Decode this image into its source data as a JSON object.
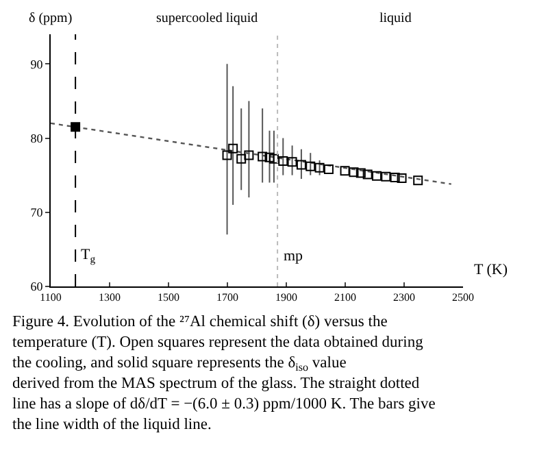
{
  "chart_data": {
    "type": "scatter",
    "xlabel": "T (K)",
    "ylabel": "δ (ppm)",
    "xlim": [
      1100,
      2500
    ],
    "xticks": [
      1100,
      1300,
      1500,
      1700,
      1900,
      2100,
      2300,
      2500
    ],
    "ylim": [
      60,
      94
    ],
    "yticks": [
      60,
      70,
      80,
      90
    ],
    "series": [
      {
        "type": "line",
        "color": "#555555",
        "line_style": "dotted",
        "marker": "none",
        "x": [
          1100,
          2460
        ],
        "values": [
          82.0,
          73.8
        ]
      },
      {
        "color": "#000000",
        "marker": "square",
        "x": [
          1699,
          1719,
          1747,
          1773,
          1819,
          1843,
          1858,
          1889,
          1920,
          1951,
          1982,
          2013,
          2044,
          2099,
          2129,
          2153,
          2176,
          2207,
          2238,
          2269,
          2292,
          2347
        ],
        "values": [
          77.7,
          78.6,
          77.2,
          77.7,
          77.5,
          77.4,
          77.2,
          76.9,
          76.8,
          76.4,
          76.2,
          76.0,
          75.8,
          75.6,
          75.4,
          75.3,
          75.1,
          74.9,
          74.8,
          74.7,
          74.6,
          74.3
        ],
        "errors": [
          [
            67,
            90
          ],
          [
            71,
            87
          ],
          [
            73,
            84
          ],
          [
            72,
            85
          ],
          [
            74,
            84
          ],
          [
            74,
            81
          ],
          [
            74,
            81
          ],
          [
            75,
            80
          ],
          [
            75,
            79
          ],
          [
            74.5,
            78.5
          ],
          [
            75,
            78
          ],
          [
            75,
            77
          ],
          null,
          null,
          null,
          null,
          null,
          null,
          null,
          null,
          null,
          null
        ]
      },
      {
        "color": "#000000",
        "marker": "square",
        "x": [
          1184
        ],
        "values": [
          81.5
        ]
      }
    ],
    "ref_lines": [
      {
        "axis": "x",
        "value": 1184,
        "label": "T$_{g}$",
        "line_style": "dashed",
        "color": "#000000"
      },
      {
        "axis": "x",
        "value": 1870,
        "label": "mp",
        "line_style": "dotted",
        "color": "#bbbbbb"
      }
    ],
    "annotations": [
      "supercooled liquid",
      "liquid",
      "Figure 4. Evolution of the ²⁷Al chemical shift (δ) versus the temperature (T). Open squares represent the data obtained during the cooling, and solid square represents the δ$_{iso}$ value derived from the MAS spectrum of the glass. The straight dotted line has a slope of dδ/dT = −(6.0 ± 0.3) ppm/1000 K. The bars give the line width of the liquid line."
    ]
  }
}
